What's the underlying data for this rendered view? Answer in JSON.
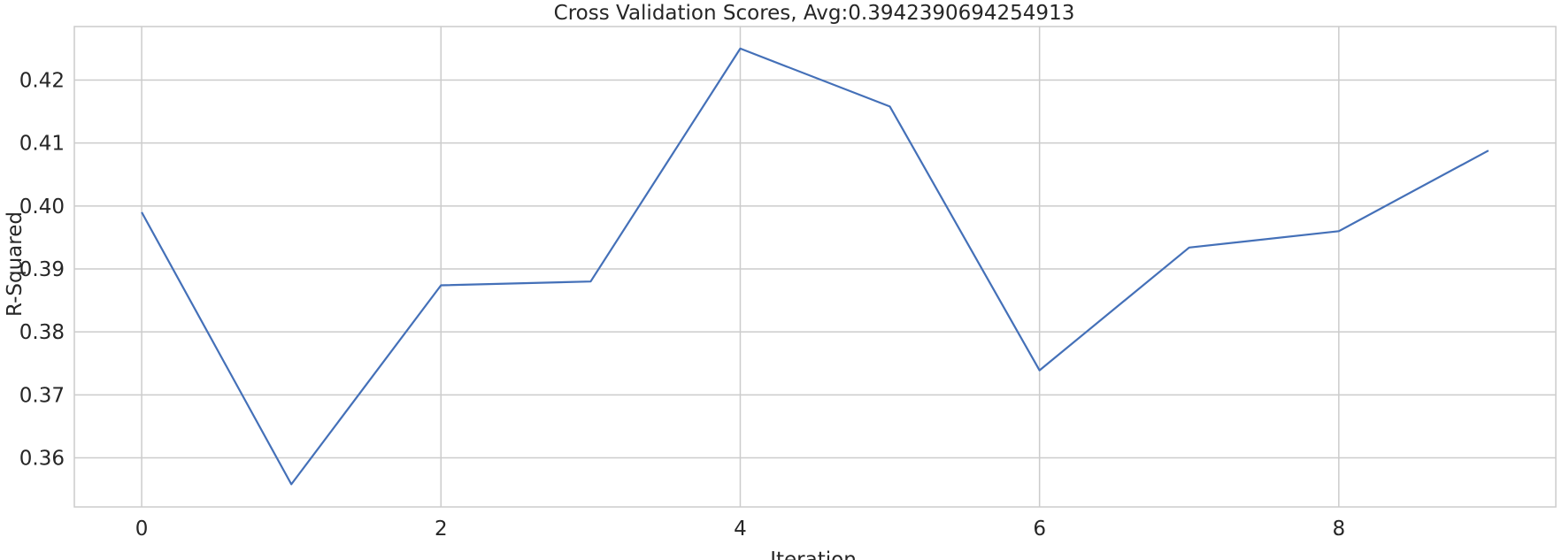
{
  "chart_data": {
    "type": "line",
    "title": "Cross Validation Scores, Avg:0.3942390694254913",
    "xlabel": "Iteration",
    "ylabel": "R-Squared",
    "x": [
      0,
      1,
      2,
      3,
      4,
      5,
      6,
      7,
      8,
      9
    ],
    "series": [
      {
        "values": [
          0.399,
          0.3558,
          0.3874,
          0.388,
          0.425,
          0.4158,
          0.3739,
          0.3934,
          0.396,
          0.4088
        ],
        "color": "#4470b8"
      }
    ],
    "xlim": [
      -0.45,
      9.45
    ],
    "ylim": [
      0.3522,
      0.4285
    ],
    "xticks": [
      0,
      2,
      4,
      6,
      8
    ],
    "xtick_labels": [
      "0",
      "2",
      "4",
      "6",
      "8"
    ],
    "yticks": [
      0.36,
      0.37,
      0.38,
      0.39,
      0.4,
      0.41,
      0.42
    ],
    "ytick_labels": [
      "0.36",
      "0.37",
      "0.38",
      "0.39",
      "0.40",
      "0.41",
      "0.42"
    ],
    "grid": true,
    "style": {
      "grid_color": "#cccccc",
      "spine_color": "#cccccc",
      "text_color": "#262626"
    }
  }
}
